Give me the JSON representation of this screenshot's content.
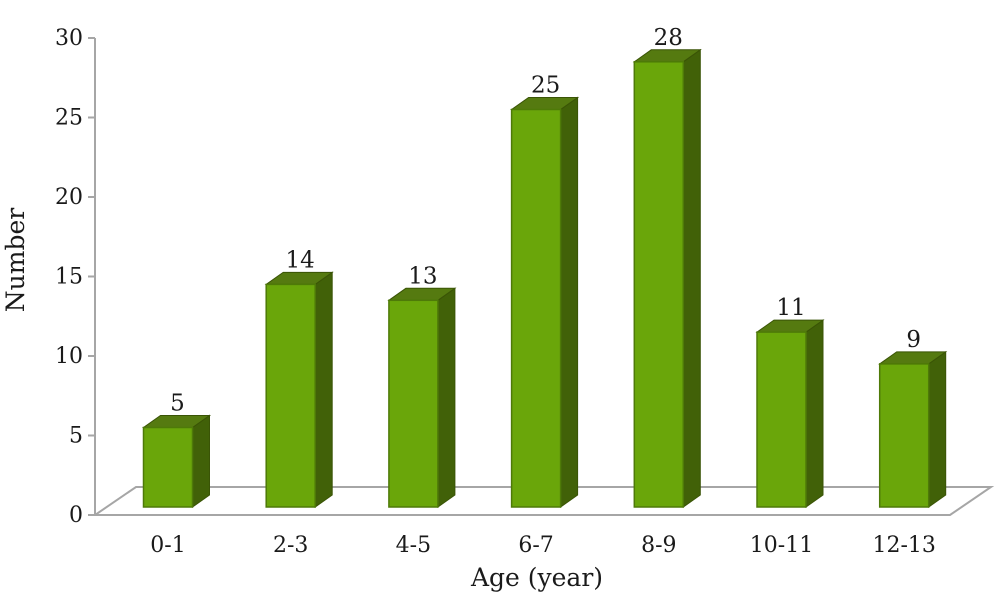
{
  "chart_data": {
    "type": "bar",
    "style": "3d-column",
    "categories": [
      "0-1",
      "2-3",
      "4-5",
      "6-7",
      "8-9",
      "10-11",
      "12-13"
    ],
    "values": [
      5,
      14,
      13,
      25,
      28,
      11,
      9
    ],
    "xlabel": "Age (year)",
    "ylabel": "Number",
    "ylim": [
      0,
      30
    ],
    "yticks": [
      0,
      5,
      10,
      15,
      20,
      25,
      30
    ],
    "grid": false,
    "legend": "none",
    "colors": {
      "bar_front": "#6aa60a",
      "bar_side": "#416108",
      "bar_top": "#557a10",
      "floor_stroke": "#a6a6a6",
      "axis_stroke": "#a6a6a6"
    }
  }
}
